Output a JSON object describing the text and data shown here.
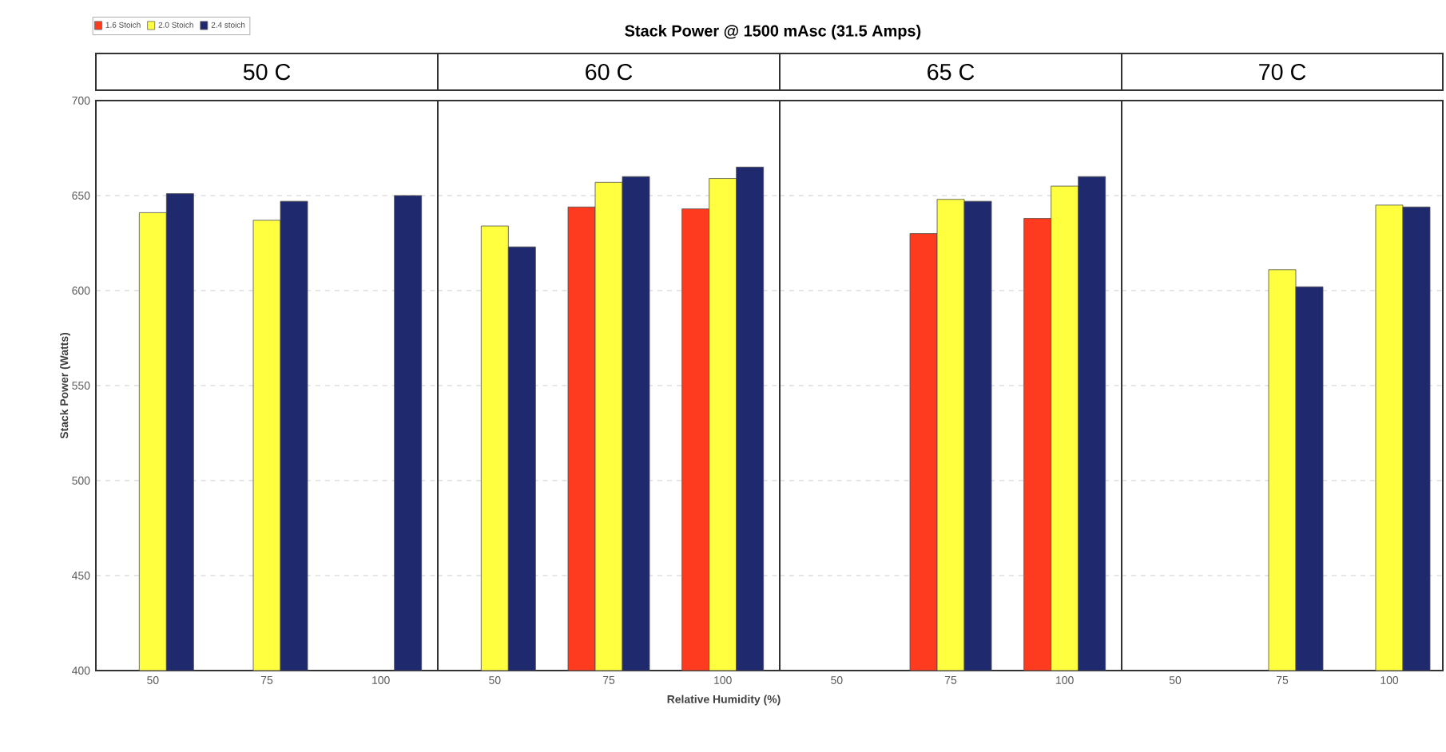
{
  "chart_data": [
    {
      "type": "bar",
      "title": "50 C",
      "annotations": [
        "Stack Power @ 1500 mAsc (31.5 Amps)"
      ],
      "ylabel": "Stack Power (Watts)",
      "categories": [
        "50",
        "75",
        "100"
      ],
      "ylim": [
        400,
        700
      ],
      "yticks": [
        400,
        450,
        500,
        550,
        600,
        650,
        700
      ],
      "grid": "y",
      "legend": "top left",
      "series": [
        {
          "name": "1.6 Stoich",
          "color": "#ff3b1f",
          "values": [
            null,
            null,
            null
          ]
        },
        {
          "name": "2.0 Stoich",
          "color": "#ffff40",
          "values": [
            641,
            637,
            null
          ]
        },
        {
          "name": "2.4 stoich",
          "color": "#1f2a6e",
          "values": [
            651,
            647,
            650
          ]
        }
      ]
    },
    {
      "type": "bar",
      "title": "60 C",
      "xlabel": "Relative Humidity (%)",
      "categories": [
        "50",
        "75",
        "100"
      ],
      "ylim": [
        400,
        700
      ],
      "yticks": [
        400,
        450,
        500,
        550,
        600,
        650,
        700
      ],
      "grid": "y",
      "tick_labels": "x",
      "series": [
        {
          "color": "#ff3b1f",
          "values": [
            null,
            644,
            643
          ]
        },
        {
          "color": "#ffff40",
          "values": [
            634,
            657,
            659
          ]
        },
        {
          "color": "#1f2a6e",
          "values": [
            623,
            660,
            665
          ]
        }
      ]
    },
    {
      "type": "bar",
      "title": "65 C",
      "categories": [
        "50",
        "75",
        "100"
      ],
      "ylim": [
        400,
        700
      ],
      "yticks": [
        400,
        450,
        500,
        550,
        600,
        650,
        700
      ],
      "grid": "y",
      "tick_labels": "x",
      "series": [
        {
          "color": "#ff3b1f",
          "values": [
            null,
            630,
            638
          ]
        },
        {
          "color": "#ffff40",
          "values": [
            null,
            648,
            655
          ]
        },
        {
          "color": "#1f2a6e",
          "values": [
            null,
            647,
            660
          ]
        }
      ]
    },
    {
      "type": "bar",
      "title": "70 C",
      "categories": [
        "50",
        "75",
        "100"
      ],
      "ylim": [
        400,
        700
      ],
      "yticks": [
        400,
        450,
        500,
        550,
        600,
        650,
        700
      ],
      "grid": "y",
      "tick_labels": "x",
      "series": [
        {
          "color": "#ff3b1f",
          "values": [
            null,
            null,
            null
          ]
        },
        {
          "color": "#ffff40",
          "values": [
            null,
            611,
            645
          ]
        },
        {
          "color": "#1f2a6e",
          "values": [
            null,
            602,
            644
          ]
        }
      ]
    }
  ]
}
